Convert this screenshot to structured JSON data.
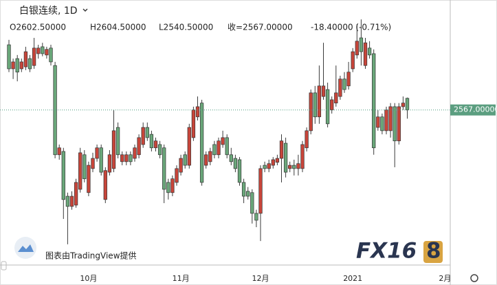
{
  "chart_data": {
    "type": "candlestick",
    "symbol": "白银连续, 1D",
    "ohlc_texts": [
      "O2602.50000",
      "H2604.50000",
      "L2540.50000",
      "收=2567.00000",
      "-18.40000 (-0.71%)"
    ],
    "watermark": "图表由TradingView提供",
    "logo": [
      "FX16",
      "8"
    ],
    "categories": [
      null,
      null,
      null,
      null,
      null,
      null,
      null,
      null,
      null,
      null,
      null,
      null,
      null,
      null,
      null,
      null,
      null,
      null,
      null,
      "10月",
      null,
      null,
      null,
      null,
      null,
      null,
      null,
      null,
      null,
      null,
      null,
      null,
      null,
      null,
      null,
      null,
      null,
      null,
      null,
      null,
      null,
      "11月",
      null,
      null,
      null,
      null,
      null,
      null,
      null,
      null,
      null,
      null,
      null,
      null,
      null,
      null,
      null,
      null,
      null,
      null,
      "12月",
      null,
      null,
      null,
      null,
      null,
      null,
      null,
      null,
      null,
      null,
      null,
      null,
      null,
      null,
      null,
      null,
      null,
      null,
      null,
      null,
      null,
      "2021",
      null,
      null,
      null,
      null,
      null,
      null,
      null,
      null,
      null,
      null,
      null,
      null,
      null,
      null,
      null,
      null,
      null,
      null,
      null,
      null,
      null,
      "2月",
      null
    ],
    "open": [
      2765,
      2692,
      2723,
      2692,
      2698,
      2723,
      2702,
      2738,
      2759,
      2734,
      2755,
      2702,
      2431,
      2441,
      2305,
      2274,
      2278,
      2326,
      2431,
      2316,
      2389,
      2420,
      2452,
      2295,
      2378,
      2389,
      2514,
      2410,
      2410,
      2431,
      2420,
      2431,
      2462,
      2514,
      2493,
      2452,
      2462,
      2452,
      2347,
      2316,
      2347,
      2378,
      2431,
      2399,
      2483,
      2546,
      2588,
      2399,
      2410,
      2462,
      2431,
      2462,
      2483,
      2431,
      2420,
      2416,
      2347,
      2320,
      2316,
      2253,
      2253,
      2399,
      2389,
      2399,
      2408,
      2420,
      2466,
      2389,
      2399,
      2389,
      2389,
      2452,
      2504,
      2619,
      2546,
      2608,
      2629,
      2567,
      2588,
      2608,
      2661,
      2640,
      2692,
      2734,
      2786,
      2702,
      2755,
      2738,
      2514,
      2546,
      2504,
      2504,
      2577,
      2473,
      2577,
      2602.5,
      null,
      null,
      null,
      null,
      null,
      null,
      null,
      null,
      null,
      null
    ],
    "high": [
      2780,
      2723,
      2734,
      2723,
      2759,
      2734,
      2786,
      2765,
      2771,
      2759,
      2765,
      2713,
      2462,
      2452,
      2316,
      2320,
      2358,
      2452,
      2445,
      2410,
      2437,
      2462,
      2462,
      2393,
      2445,
      2567,
      2529,
      2441,
      2441,
      2441,
      2462,
      2493,
      2529,
      2529,
      2504,
      2483,
      2473,
      2462,
      2358,
      2368,
      2399,
      2431,
      2441,
      2525,
      2577,
      2608,
      2598,
      2441,
      2452,
      2473,
      2483,
      2504,
      2493,
      2452,
      2431,
      2424,
      2358,
      2333,
      2326,
      2264,
      2399,
      2410,
      2416,
      2424,
      2431,
      2493,
      2483,
      2410,
      2416,
      2431,
      2473,
      2514,
      2629,
      2640,
      2702,
      2771,
      2650,
      2608,
      2702,
      2671,
      2682,
      2713,
      2755,
      2828,
      2842,
      2786,
      2776,
      2751,
      2567,
      2556,
      2577,
      2588,
      2588,
      2588,
      2608,
      2604.5,
      null,
      null,
      null,
      null,
      null,
      null,
      null,
      null,
      null,
      null
    ],
    "low": [
      2682,
      2661,
      2654,
      2682,
      2688,
      2682,
      2692,
      2723,
      2730,
      2723,
      2702,
      2420,
      2416,
      2236,
      2159,
      2264,
      2270,
      2316,
      2347,
      2305,
      2378,
      2410,
      2368,
      2284,
      2368,
      2378,
      2420,
      2399,
      2399,
      2399,
      2410,
      2420,
      2452,
      2473,
      2441,
      2441,
      2420,
      2284,
      2295,
      2305,
      2337,
      2368,
      2389,
      2389,
      2473,
      2535,
      2337,
      2389,
      2399,
      2420,
      2420,
      2452,
      2420,
      2399,
      2378,
      2337,
      2284,
      2295,
      2222,
      2211,
      2169,
      2378,
      2378,
      2389,
      2399,
      2347,
      2362,
      2378,
      2368,
      2368,
      2378,
      2441,
      2493,
      2525,
      2525,
      2598,
      2514,
      2556,
      2577,
      2598,
      2619,
      2629,
      2682,
      2723,
      2702,
      2692,
      2723,
      2431,
      2504,
      2493,
      2493,
      2483,
      2393,
      2462,
      2567,
      2540.5,
      null,
      null,
      null,
      null,
      null,
      null,
      null,
      null,
      null,
      null
    ],
    "close": [
      2692,
      2713,
      2682,
      2713,
      2744,
      2692,
      2755,
      2755,
      2738,
      2751,
      2713,
      2431,
      2452,
      2295,
      2274,
      2305,
      2347,
      2437,
      2358,
      2399,
      2420,
      2452,
      2378,
      2383,
      2431,
      2504,
      2431,
      2431,
      2431,
      2410,
      2452,
      2483,
      2514,
      2483,
      2452,
      2473,
      2431,
      2326,
      2316,
      2358,
      2389,
      2420,
      2399,
      2514,
      2567,
      2577,
      2347,
      2431,
      2441,
      2431,
      2473,
      2483,
      2431,
      2410,
      2389,
      2347,
      2305,
      2305,
      2253,
      2232,
      2389,
      2389,
      2404,
      2416,
      2420,
      2473,
      2378,
      2399,
      2389,
      2404,
      2462,
      2504,
      2619,
      2546,
      2640,
      2640,
      2525,
      2598,
      2619,
      2661,
      2629,
      2682,
      2744,
      2776,
      2744,
      2771,
      2734,
      2452,
      2546,
      2504,
      2567,
      2577,
      2473,
      2577,
      2588,
      2567,
      null,
      null,
      null,
      null,
      null,
      null,
      null,
      null,
      null,
      null
    ],
    "up_color": "#c8453a",
    "down_color": "#6aa77a",
    "ylim": [
      2096,
      2901
    ],
    "last_price": {
      "value": 2567,
      "label": "2567.00000"
    }
  }
}
